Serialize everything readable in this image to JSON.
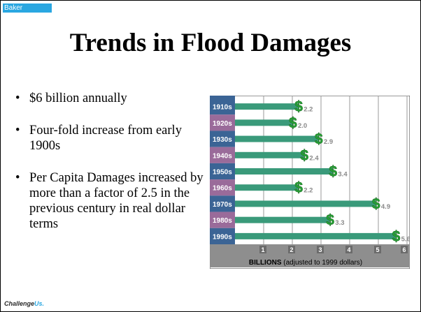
{
  "header": {
    "tag": "Baker",
    "title": "Trends in Flood Damages"
  },
  "bullets": [
    "$6 billion annually",
    "Four-fold increase from early 1900s",
    "Per Capita Damages increased by more than a factor of 2.5 in the previous century in real dollar terms"
  ],
  "footer": {
    "logo_main": "Challenge",
    "logo_accent": "Us."
  },
  "colors": {
    "left_col_blue": "#3b6495",
    "left_col_purple": "#9a6b9a",
    "bar": "#3a9a7a",
    "plot_bg": "#ffffff",
    "tick_strip": "#8e8e8e",
    "dollar": "#27a336"
  },
  "chart_data": {
    "type": "bar",
    "orientation": "horizontal",
    "categories": [
      "1910s",
      "1920s",
      "1930s",
      "1940s",
      "1950s",
      "1960s",
      "1970s",
      "1980s",
      "1990s"
    ],
    "values": [
      2.2,
      2.0,
      2.9,
      2.4,
      3.4,
      2.2,
      4.9,
      3.3,
      5.6
    ],
    "data_labels": [
      "2.2",
      "2.0",
      "2.9",
      "2.4",
      "3.4",
      "2.2",
      "4.9",
      "3.3",
      "5.6"
    ],
    "xlim": [
      0,
      6
    ],
    "x_ticks": [
      "1",
      "2",
      "3",
      "4",
      "5",
      "6"
    ],
    "xlabel_bold": "BILLIONS",
    "xlabel_rest": " (adjusted to 1999 dollars)",
    "value_marker": "$",
    "grid": true
  }
}
